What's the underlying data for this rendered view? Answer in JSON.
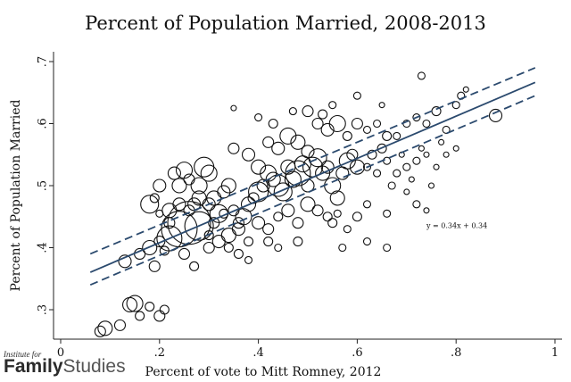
{
  "brand": {
    "line1": "Institute for",
    "bold": "Family",
    "light": "Studies"
  },
  "chart_data": {
    "type": "scatter",
    "title": "Percent of Population Married, 2008-2013",
    "xlabel": "Percent of vote to Mitt Romney, 2012",
    "ylabel": "Percent of Population Married",
    "xlim": [
      0,
      1
    ],
    "ylim": [
      0.25,
      0.72
    ],
    "xticks": [
      0,
      0.2,
      0.4,
      0.6,
      0.8,
      1
    ],
    "xtick_labels": [
      "0",
      ".2",
      ".4",
      ".6",
      ".8",
      "1"
    ],
    "yticks": [
      0.3,
      0.4,
      0.5,
      0.6,
      0.7
    ],
    "ytick_labels": [
      ".3",
      ".4",
      ".5",
      ".6",
      ".7"
    ],
    "grid": false,
    "annotation": {
      "text": "y = 0.34x + 0.34",
      "x": 0.74,
      "y": 0.432
    },
    "fit_line": {
      "slope": 0.34,
      "intercept": 0.34,
      "x_range": [
        0.06,
        0.96
      ]
    },
    "confidence_band": {
      "lower": [
        [
          0.06,
          0.34
        ],
        [
          0.96,
          0.645
        ]
      ],
      "upper": [
        [
          0.06,
          0.39
        ],
        [
          0.96,
          0.69
        ]
      ]
    },
    "points": [
      [
        0.08,
        0.265,
        6
      ],
      [
        0.09,
        0.27,
        8
      ],
      [
        0.12,
        0.275,
        6
      ],
      [
        0.14,
        0.308,
        8
      ],
      [
        0.15,
        0.31,
        9
      ],
      [
        0.16,
        0.29,
        5
      ],
      [
        0.18,
        0.305,
        5
      ],
      [
        0.2,
        0.29,
        6
      ],
      [
        0.21,
        0.3,
        5
      ],
      [
        0.13,
        0.378,
        7
      ],
      [
        0.16,
        0.39,
        6
      ],
      [
        0.18,
        0.4,
        8
      ],
      [
        0.19,
        0.37,
        6
      ],
      [
        0.2,
        0.41,
        6
      ],
      [
        0.21,
        0.395,
        5
      ],
      [
        0.22,
        0.415,
        14
      ],
      [
        0.24,
        0.43,
        20
      ],
      [
        0.26,
        0.44,
        24
      ],
      [
        0.28,
        0.435,
        16
      ],
      [
        0.25,
        0.39,
        6
      ],
      [
        0.27,
        0.37,
        5
      ],
      [
        0.18,
        0.47,
        10
      ],
      [
        0.19,
        0.48,
        5
      ],
      [
        0.2,
        0.5,
        7
      ],
      [
        0.22,
        0.46,
        8
      ],
      [
        0.23,
        0.52,
        7
      ],
      [
        0.24,
        0.5,
        8
      ],
      [
        0.25,
        0.525,
        9
      ],
      [
        0.26,
        0.51,
        6
      ],
      [
        0.27,
        0.47,
        7
      ],
      [
        0.28,
        0.5,
        9
      ],
      [
        0.29,
        0.53,
        11
      ],
      [
        0.3,
        0.52,
        9
      ],
      [
        0.31,
        0.48,
        8
      ],
      [
        0.32,
        0.455,
        10
      ],
      [
        0.33,
        0.49,
        7
      ],
      [
        0.34,
        0.5,
        8
      ],
      [
        0.35,
        0.46,
        6
      ],
      [
        0.36,
        0.43,
        7
      ],
      [
        0.37,
        0.45,
        9
      ],
      [
        0.38,
        0.47,
        8
      ],
      [
        0.39,
        0.48,
        6
      ],
      [
        0.4,
        0.49,
        11
      ],
      [
        0.41,
        0.5,
        7
      ],
      [
        0.42,
        0.52,
        9
      ],
      [
        0.43,
        0.51,
        8
      ],
      [
        0.44,
        0.5,
        12
      ],
      [
        0.45,
        0.49,
        10
      ],
      [
        0.46,
        0.53,
        8
      ],
      [
        0.47,
        0.51,
        9
      ],
      [
        0.48,
        0.52,
        14
      ],
      [
        0.49,
        0.535,
        9
      ],
      [
        0.5,
        0.5,
        7
      ],
      [
        0.51,
        0.53,
        11
      ],
      [
        0.52,
        0.545,
        10
      ],
      [
        0.53,
        0.52,
        8
      ],
      [
        0.54,
        0.53,
        7
      ],
      [
        0.55,
        0.5,
        9
      ],
      [
        0.56,
        0.48,
        8
      ],
      [
        0.57,
        0.52,
        7
      ],
      [
        0.58,
        0.54,
        9
      ],
      [
        0.59,
        0.55,
        6
      ],
      [
        0.6,
        0.53,
        8
      ],
      [
        0.3,
        0.4,
        6
      ],
      [
        0.32,
        0.41,
        7
      ],
      [
        0.34,
        0.42,
        8
      ],
      [
        0.36,
        0.44,
        6
      ],
      [
        0.38,
        0.41,
        5
      ],
      [
        0.4,
        0.44,
        7
      ],
      [
        0.42,
        0.43,
        6
      ],
      [
        0.44,
        0.45,
        5
      ],
      [
        0.46,
        0.46,
        7
      ],
      [
        0.48,
        0.44,
        6
      ],
      [
        0.5,
        0.47,
        8
      ],
      [
        0.52,
        0.46,
        6
      ],
      [
        0.54,
        0.45,
        5
      ],
      [
        0.56,
        0.455,
        4
      ],
      [
        0.58,
        0.43,
        4
      ],
      [
        0.6,
        0.45,
        5
      ],
      [
        0.35,
        0.56,
        6
      ],
      [
        0.38,
        0.55,
        7
      ],
      [
        0.4,
        0.53,
        8
      ],
      [
        0.42,
        0.57,
        6
      ],
      [
        0.44,
        0.56,
        7
      ],
      [
        0.46,
        0.58,
        9
      ],
      [
        0.48,
        0.57,
        8
      ],
      [
        0.5,
        0.555,
        7
      ],
      [
        0.52,
        0.6,
        6
      ],
      [
        0.54,
        0.59,
        7
      ],
      [
        0.56,
        0.6,
        9
      ],
      [
        0.58,
        0.58,
        5
      ],
      [
        0.6,
        0.6,
        6
      ],
      [
        0.62,
        0.59,
        4
      ],
      [
        0.64,
        0.6,
        4
      ],
      [
        0.66,
        0.58,
        5
      ],
      [
        0.68,
        0.58,
        4
      ],
      [
        0.7,
        0.6,
        4
      ],
      [
        0.72,
        0.61,
        4
      ],
      [
        0.74,
        0.6,
        4
      ],
      [
        0.76,
        0.62,
        5
      ],
      [
        0.78,
        0.59,
        4
      ],
      [
        0.8,
        0.63,
        4
      ],
      [
        0.81,
        0.645,
        4
      ],
      [
        0.82,
        0.655,
        3
      ],
      [
        0.88,
        0.613,
        7
      ],
      [
        0.62,
        0.53,
        4
      ],
      [
        0.63,
        0.55,
        5
      ],
      [
        0.64,
        0.52,
        4
      ],
      [
        0.65,
        0.56,
        5
      ],
      [
        0.66,
        0.54,
        4
      ],
      [
        0.67,
        0.5,
        4
      ],
      [
        0.68,
        0.52,
        4
      ],
      [
        0.69,
        0.55,
        3
      ],
      [
        0.7,
        0.53,
        4
      ],
      [
        0.71,
        0.51,
        3
      ],
      [
        0.72,
        0.54,
        4
      ],
      [
        0.73,
        0.56,
        3
      ],
      [
        0.74,
        0.55,
        3
      ],
      [
        0.75,
        0.5,
        3
      ],
      [
        0.76,
        0.53,
        3
      ],
      [
        0.77,
        0.57,
        3
      ],
      [
        0.78,
        0.55,
        3
      ],
      [
        0.8,
        0.56,
        3
      ],
      [
        0.72,
        0.47,
        4
      ],
      [
        0.74,
        0.46,
        3
      ],
      [
        0.66,
        0.455,
        4
      ],
      [
        0.62,
        0.47,
        4
      ],
      [
        0.7,
        0.49,
        3
      ],
      [
        0.43,
        0.6,
        5
      ],
      [
        0.47,
        0.62,
        4
      ],
      [
        0.5,
        0.62,
        6
      ],
      [
        0.53,
        0.615,
        5
      ],
      [
        0.55,
        0.63,
        4
      ],
      [
        0.6,
        0.645,
        4
      ],
      [
        0.65,
        0.63,
        3
      ],
      [
        0.73,
        0.677,
        4
      ],
      [
        0.35,
        0.625,
        3
      ],
      [
        0.4,
        0.61,
        4
      ],
      [
        0.24,
        0.47,
        7
      ],
      [
        0.26,
        0.46,
        6
      ],
      [
        0.28,
        0.48,
        8
      ],
      [
        0.3,
        0.47,
        7
      ],
      [
        0.31,
        0.44,
        6
      ],
      [
        0.33,
        0.455,
        5
      ],
      [
        0.22,
        0.44,
        6
      ],
      [
        0.2,
        0.455,
        4
      ],
      [
        0.34,
        0.4,
        5
      ],
      [
        0.3,
        0.42,
        5
      ],
      [
        0.36,
        0.39,
        5
      ],
      [
        0.38,
        0.38,
        4
      ],
      [
        0.42,
        0.41,
        5
      ],
      [
        0.44,
        0.4,
        4
      ],
      [
        0.48,
        0.41,
        5
      ],
      [
        0.55,
        0.44,
        5
      ],
      [
        0.57,
        0.4,
        4
      ],
      [
        0.62,
        0.41,
        4
      ],
      [
        0.66,
        0.4,
        4
      ]
    ]
  }
}
